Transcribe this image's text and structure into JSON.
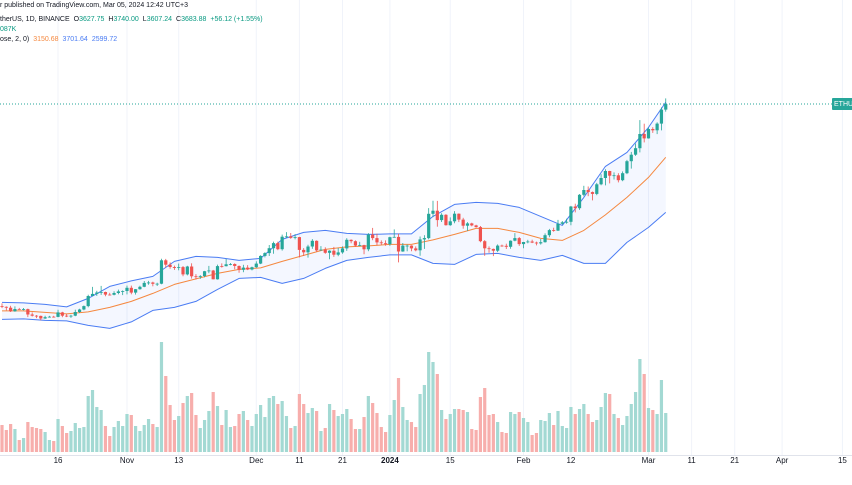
{
  "chart_data": {
    "type": "candlestick",
    "header": {
      "published": "r published on TradingView.com, Mar 05, 2024 12:42 UTC+3",
      "symbol": "therUS, 1D, BINANCE",
      "ohlc": [
        {
          "label": "O",
          "value": "3627.75"
        },
        {
          "label": "H",
          "value": "3740.00"
        },
        {
          "label": "L",
          "value": "3607.24"
        },
        {
          "label": "C",
          "value": "3683.88"
        }
      ],
      "change": "+56.12 (+1.55%)",
      "volume": "087K",
      "indicator": "ose, 2, 0)",
      "price_label": "ETHUS"
    },
    "up_color": "#26a69a",
    "down_color": "#ef5350",
    "volume_up_color": "#a3d9d3",
    "volume_down_color": "#f7aeac",
    "ylim": [
      1324,
      4724
    ],
    "volume_ylim": [
      0,
      1100
    ],
    "categories": [
      "2023-10-03",
      "2023-10-04",
      "2023-10-05",
      "2023-10-06",
      "2023-10-07",
      "2023-10-08",
      "2023-10-09",
      "2023-10-10",
      "2023-10-11",
      "2023-10-12",
      "2023-10-13",
      "2023-10-14",
      "2023-10-15",
      "2023-10-16",
      "2023-10-17",
      "2023-10-18",
      "2023-10-19",
      "2023-10-20",
      "2023-10-21",
      "2023-10-22",
      "2023-10-23",
      "2023-10-24",
      "2023-10-25",
      "2023-10-26",
      "2023-10-27",
      "2023-10-28",
      "2023-10-29",
      "2023-10-30",
      "2023-10-31",
      "2023-11-01",
      "2023-11-02",
      "2023-11-03",
      "2023-11-04",
      "2023-11-05",
      "2023-11-06",
      "2023-11-07",
      "2023-11-08",
      "2023-11-09",
      "2023-11-10",
      "2023-11-11",
      "2023-11-12",
      "2023-11-13",
      "2023-11-14",
      "2023-11-15",
      "2023-11-16",
      "2023-11-17",
      "2023-11-18",
      "2023-11-19",
      "2023-11-20",
      "2023-11-21",
      "2023-11-22",
      "2023-11-23",
      "2023-11-24",
      "2023-11-25",
      "2023-11-26",
      "2023-11-27",
      "2023-11-28",
      "2023-11-29",
      "2023-11-30",
      "2023-12-01",
      "2023-12-02",
      "2023-12-03",
      "2023-12-04",
      "2023-12-05",
      "2023-12-06",
      "2023-12-07",
      "2023-12-08",
      "2023-12-09",
      "2023-12-10",
      "2023-12-11",
      "2023-12-12",
      "2023-12-13",
      "2023-12-14",
      "2023-12-15",
      "2023-12-16",
      "2023-12-17",
      "2023-12-18",
      "2023-12-19",
      "2023-12-20",
      "2023-12-21",
      "2023-12-22",
      "2023-12-23",
      "2023-12-24",
      "2023-12-25",
      "2023-12-26",
      "2023-12-27",
      "2023-12-28",
      "2023-12-29",
      "2023-12-30",
      "2023-12-31",
      "2024-01-01",
      "2024-01-02",
      "2024-01-03",
      "2024-01-04",
      "2024-01-05",
      "2024-01-06",
      "2024-01-07",
      "2024-01-08",
      "2024-01-09",
      "2024-01-10",
      "2024-01-11",
      "2024-01-12",
      "2024-01-13",
      "2024-01-14",
      "2024-01-15",
      "2024-01-16",
      "2024-01-17",
      "2024-01-18",
      "2024-01-19",
      "2024-01-20",
      "2024-01-21",
      "2024-01-22",
      "2024-01-23",
      "2024-01-24",
      "2024-01-25",
      "2024-01-26",
      "2024-01-27",
      "2024-01-28",
      "2024-01-29",
      "2024-01-30",
      "2024-01-31",
      "2024-02-01",
      "2024-02-02",
      "2024-02-03",
      "2024-02-04",
      "2024-02-05",
      "2024-02-06",
      "2024-02-07",
      "2024-02-08",
      "2024-02-09",
      "2024-02-10",
      "2024-02-11",
      "2024-02-12",
      "2024-02-13",
      "2024-02-14",
      "2024-02-15",
      "2024-02-16",
      "2024-02-17",
      "2024-02-18",
      "2024-02-19",
      "2024-02-20",
      "2024-02-21",
      "2024-02-22",
      "2024-02-23",
      "2024-02-24",
      "2024-02-25",
      "2024-02-26",
      "2024-02-27",
      "2024-02-28",
      "2024-02-29",
      "2024-03-01",
      "2024-03-02",
      "2024-03-03",
      "2024-03-04",
      "2024-03-05"
    ],
    "open": [
      1664,
      1656,
      1647,
      1611,
      1634,
      1633,
      1633,
      1579,
      1567,
      1565,
      1539,
      1552,
      1557,
      1555,
      1600,
      1567,
      1564,
      1567,
      1604,
      1629,
      1663,
      1764,
      1785,
      1799,
      1804,
      1778,
      1776,
      1794,
      1810,
      1814,
      1846,
      1798,
      1832,
      1856,
      1895,
      1899,
      1886,
      1887,
      2121,
      2077,
      2054,
      2045,
      2053,
      1980,
      2059,
      1961,
      1960,
      1964,
      2012,
      2019,
      1931,
      2063,
      2062,
      2081,
      2084,
      2064,
      2026,
      2048,
      2029,
      2052,
      2088,
      2165,
      2193,
      2242,
      2293,
      2232,
      2357,
      2360,
      2345,
      2353,
      2225,
      2201,
      2259,
      2316,
      2220,
      2228,
      2196,
      2217,
      2177,
      2200,
      2240,
      2326,
      2312,
      2268,
      2273,
      2231,
      2378,
      2343,
      2300,
      2292,
      2282,
      2352,
      2355,
      2209,
      2268,
      2268,
      2240,
      2221,
      2330,
      2343,
      2586,
      2617,
      2523,
      2576,
      2472,
      2511,
      2587,
      2528,
      2467,
      2490,
      2470,
      2453,
      2312,
      2241,
      2235,
      2217,
      2268,
      2266,
      2256,
      2317,
      2343,
      2283,
      2304,
      2309,
      2298,
      2290,
      2302,
      2372,
      2423,
      2418,
      2486,
      2501,
      2506,
      2659,
      2642,
      2776,
      2824,
      2803,
      2785,
      2881,
      2944,
      3014,
      2967,
      2971,
      2922,
      2992,
      3112,
      3177,
      3242,
      3384,
      3340,
      3434,
      3421,
      3488,
      3627.75
    ],
    "high": [
      1690,
      1660,
      1666,
      1660,
      1645,
      1644,
      1638,
      1600,
      1574,
      1568,
      1567,
      1565,
      1566,
      1627,
      1606,
      1585,
      1576,
      1627,
      1636,
      1669,
      1777,
      1855,
      1816,
      1865,
      1808,
      1796,
      1811,
      1828,
      1820,
      1868,
      1868,
      1834,
      1866,
      1914,
      1915,
      1907,
      1897,
      2136,
      2135,
      2100,
      2068,
      2088,
      2064,
      2066,
      2091,
      1983,
      1973,
      2015,
      2065,
      2025,
      2078,
      2090,
      2134,
      2094,
      2091,
      2070,
      2076,
      2073,
      2058,
      2111,
      2172,
      2201,
      2274,
      2308,
      2307,
      2378,
      2403,
      2394,
      2383,
      2356,
      2243,
      2276,
      2333,
      2320,
      2263,
      2251,
      2222,
      2255,
      2244,
      2260,
      2342,
      2330,
      2320,
      2306,
      2276,
      2393,
      2445,
      2386,
      2320,
      2320,
      2356,
      2430,
      2387,
      2294,
      2278,
      2272,
      2260,
      2359,
      2372,
      2643,
      2717,
      2715,
      2592,
      2583,
      2550,
      2613,
      2590,
      2546,
      2503,
      2497,
      2476,
      2464,
      2323,
      2260,
      2238,
      2280,
      2278,
      2287,
      2320,
      2393,
      2354,
      2305,
      2326,
      2327,
      2308,
      2334,
      2390,
      2435,
      2447,
      2525,
      2514,
      2537,
      2665,
      2687,
      2784,
      2866,
      2859,
      2809,
      2895,
      2982,
      3031,
      3016,
      3000,
      2992,
      3010,
      3125,
      3205,
      3289,
      3523,
      3487,
      3450,
      3452,
      3501,
      3650,
      3740
    ],
    "low": [
      1643,
      1620,
      1604,
      1607,
      1627,
      1620,
      1553,
      1559,
      1543,
      1521,
      1535,
      1548,
      1548,
      1552,
      1552,
      1553,
      1545,
      1562,
      1594,
      1621,
      1651,
      1762,
      1765,
      1775,
      1761,
      1769,
      1770,
      1781,
      1773,
      1780,
      1781,
      1778,
      1826,
      1852,
      1876,
      1861,
      1864,
      1881,
      2050,
      2036,
      2025,
      2021,
      1961,
      1970,
      1938,
      1929,
      1935,
      1952,
      1992,
      1930,
      1928,
      2048,
      2060,
      2072,
      2031,
      1996,
      2002,
      2023,
      2020,
      2045,
      2083,
      2150,
      2164,
      2187,
      2222,
      2218,
      2345,
      2336,
      2330,
      2150,
      2164,
      2148,
      2236,
      2207,
      2216,
      2186,
      2132,
      2155,
      2162,
      2186,
      2215,
      2291,
      2258,
      2263,
      2181,
      2212,
      2322,
      2270,
      2275,
      2266,
      2265,
      2348,
      2100,
      2206,
      2211,
      2212,
      2211,
      2166,
      2235,
      2331,
      2553,
      2457,
      2504,
      2468,
      2466,
      2491,
      2503,
      2437,
      2415,
      2461,
      2448,
      2302,
      2166,
      2196,
      2163,
      2204,
      2256,
      2234,
      2236,
      2311,
      2265,
      2242,
      2291,
      2293,
      2270,
      2278,
      2298,
      2352,
      2407,
      2414,
      2477,
      2487,
      2472,
      2600,
      2625,
      2761,
      2762,
      2720,
      2772,
      2872,
      2870,
      2890,
      2929,
      2900,
      2912,
      2983,
      3038,
      3165,
      3200,
      3300,
      3338,
      3395,
      3383,
      3420,
      3607.24
    ],
    "close": [
      1656,
      1647,
      1611,
      1634,
      1633,
      1633,
      1579,
      1567,
      1565,
      1539,
      1552,
      1557,
      1555,
      1600,
      1567,
      1564,
      1567,
      1604,
      1629,
      1663,
      1764,
      1785,
      1799,
      1804,
      1778,
      1776,
      1794,
      1810,
      1814,
      1846,
      1798,
      1832,
      1856,
      1895,
      1899,
      1886,
      1887,
      2121,
      2077,
      2054,
      2045,
      2053,
      1980,
      2059,
      1961,
      1960,
      1964,
      2012,
      2019,
      1931,
      2063,
      2062,
      2081,
      2084,
      2064,
      2026,
      2048,
      2029,
      2052,
      2088,
      2165,
      2193,
      2242,
      2293,
      2232,
      2357,
      2360,
      2345,
      2353,
      2225,
      2201,
      2259,
      2316,
      2220,
      2228,
      2196,
      2217,
      2177,
      2200,
      2240,
      2326,
      2312,
      2268,
      2273,
      2231,
      2378,
      2343,
      2300,
      2292,
      2282,
      2352,
      2355,
      2209,
      2268,
      2268,
      2240,
      2221,
      2330,
      2343,
      2586,
      2617,
      2523,
      2576,
      2472,
      2511,
      2587,
      2528,
      2467,
      2490,
      2470,
      2453,
      2312,
      2241,
      2235,
      2217,
      2268,
      2266,
      2256,
      2317,
      2343,
      2283,
      2304,
      2309,
      2298,
      2290,
      2302,
      2372,
      2423,
      2418,
      2486,
      2501,
      2506,
      2659,
      2642,
      2776,
      2824,
      2803,
      2785,
      2881,
      2944,
      3014,
      2967,
      2971,
      2922,
      2992,
      3112,
      3177,
      3242,
      3384,
      3340,
      3434,
      3421,
      3488,
      3627.76,
      3683.88
    ],
    "volume": [
      270,
      220,
      280,
      230,
      120,
      140,
      300,
      250,
      240,
      230,
      200,
      120,
      110,
      330,
      260,
      190,
      210,
      290,
      240,
      250,
      560,
      620,
      450,
      420,
      260,
      160,
      250,
      310,
      260,
      380,
      370,
      260,
      210,
      270,
      330,
      280,
      250,
      1100,
      760,
      470,
      320,
      360,
      490,
      560,
      590,
      370,
      240,
      320,
      410,
      600,
      460,
      270,
      420,
      250,
      260,
      380,
      410,
      320,
      260,
      380,
      470,
      350,
      540,
      560,
      480,
      510,
      360,
      240,
      260,
      580,
      480,
      390,
      440,
      410,
      210,
      240,
      480,
      420,
      360,
      380,
      430,
      330,
      230,
      230,
      350,
      560,
      490,
      390,
      250,
      200,
      370,
      520,
      740,
      450,
      320,
      300,
      250,
      580,
      670,
      1000,
      900,
      780,
      420,
      330,
      380,
      430,
      430,
      420,
      400,
      230,
      220,
      550,
      640,
      370,
      380,
      300,
      200,
      190,
      400,
      380,
      400,
      340,
      300,
      170,
      190,
      320,
      310,
      390,
      270,
      410,
      260,
      240,
      450,
      380,
      430,
      480,
      380,
      300,
      320,
      450,
      590,
      580,
      380,
      340,
      270,
      360,
      480,
      600,
      930,
      780,
      440,
      420,
      380,
      720,
      390
    ],
    "bands": {
      "upper_color": "#4a7cf3",
      "basis_color": "#f5883f",
      "lower_color": "#4a7cf3",
      "fill_color": "#2962ff",
      "x": [
        "2023-10-03",
        "2023-10-08",
        "2023-10-13",
        "2023-10-18",
        "2023-10-23",
        "2023-10-28",
        "2023-11-02",
        "2023-11-07",
        "2023-11-12",
        "2023-11-17",
        "2023-11-22",
        "2023-11-27",
        "2023-12-02",
        "2023-12-07",
        "2023-12-12",
        "2023-12-17",
        "2023-12-22",
        "2023-12-27",
        "2024-01-01",
        "2024-01-06",
        "2024-01-11",
        "2024-01-16",
        "2024-01-21",
        "2024-01-26",
        "2024-01-31",
        "2024-02-05",
        "2024-02-10",
        "2024-02-15",
        "2024-02-20",
        "2024-02-25",
        "2024-03-01",
        "2024-03-05"
      ],
      "upper": [
        1700,
        1695,
        1680,
        1655,
        1740,
        1860,
        1915,
        1960,
        2110,
        2160,
        2150,
        2120,
        2140,
        2330,
        2400,
        2420,
        2390,
        2380,
        2385,
        2385,
        2560,
        2680,
        2700,
        2690,
        2650,
        2560,
        2470,
        2750,
        3060,
        3200,
        3450,
        3701.64
      ],
      "basis": [
        1615,
        1615,
        1600,
        1585,
        1605,
        1650,
        1710,
        1790,
        1880,
        1935,
        1990,
        2030,
        2045,
        2110,
        2170,
        2230,
        2255,
        2265,
        2280,
        2280,
        2325,
        2380,
        2440,
        2440,
        2400,
        2340,
        2320,
        2420,
        2575,
        2750,
        2950,
        3150.68
      ],
      "lower": [
        1530,
        1535,
        1520,
        1515,
        1470,
        1440,
        1505,
        1620,
        1650,
        1710,
        1830,
        1940,
        1950,
        1890,
        1940,
        2040,
        2120,
        2150,
        2175,
        2175,
        2090,
        2080,
        2180,
        2190,
        2150,
        2120,
        2170,
        2090,
        2090,
        2300,
        2450,
        2599.72
      ]
    },
    "xticks": [
      {
        "value": "2023-10-16",
        "label": "16"
      },
      {
        "value": "2023-11-01",
        "label": "Nov"
      },
      {
        "value": "2023-11-13",
        "label": "13"
      },
      {
        "value": "2023-12-01",
        "label": "Dec"
      },
      {
        "value": "2023-12-11",
        "label": "11"
      },
      {
        "value": "2023-12-21",
        "label": "21"
      },
      {
        "value": "2024-01-01",
        "label": "2024"
      },
      {
        "value": "2024-01-15",
        "label": "15"
      },
      {
        "value": "2024-02-01",
        "label": "Feb"
      },
      {
        "value": "2024-02-12",
        "label": "12"
      },
      {
        "value": "2024-03-01",
        "label": "Mar"
      },
      {
        "value": "2024-03-11",
        "label": "11"
      },
      {
        "value": "2024-03-21",
        "label": "21"
      },
      {
        "value": "2024-04-01",
        "label": "Apr"
      },
      {
        "value": "2024-04-15",
        "label": "15"
      }
    ],
    "bold_xtick": "2024",
    "grid": true
  }
}
